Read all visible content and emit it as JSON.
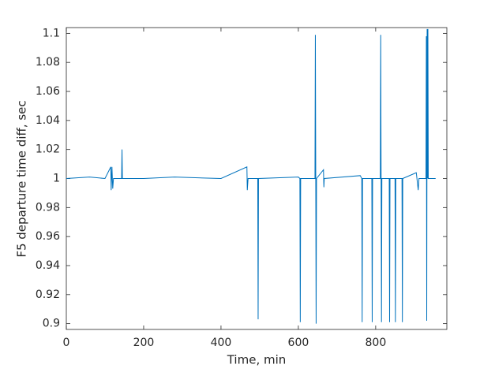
{
  "chart_data": {
    "type": "line",
    "x_label": "Time, min",
    "y_label": "F5 departure time diff, sec",
    "xlim": [
      0,
      984
    ],
    "ylim": [
      0.896,
      1.104
    ],
    "xticks": [
      0,
      200,
      400,
      600,
      800
    ],
    "yticks": [
      0.9,
      0.92,
      0.94,
      0.96,
      0.98,
      1,
      1.02,
      1.04,
      1.06,
      1.08,
      1.1
    ],
    "series": [
      {
        "color": "#0072bd",
        "x": [
          0,
          60,
          100,
          115,
          116,
          118,
          120,
          122,
          143,
          144,
          145,
          200,
          280,
          400,
          467,
          468,
          470,
          495,
          496,
          497,
          600,
          604,
          605,
          606,
          643,
          644,
          645,
          646,
          647,
          665,
          666,
          667,
          760,
          764,
          765,
          766,
          790,
          791,
          792,
          812,
          813,
          814,
          815,
          816,
          835,
          836,
          837,
          850,
          851,
          852,
          868,
          869,
          870,
          905,
          910,
          912,
          930,
          931,
          932,
          933,
          934,
          935,
          936,
          955
        ],
        "values": [
          1,
          1.001,
          1,
          1.008,
          0.992,
          1.008,
          0.993,
          1,
          1,
          1.02,
          1,
          1,
          1.001,
          1,
          1.008,
          0.992,
          1,
          1,
          0.903,
          1,
          1.001,
          1,
          0.901,
          1,
          1,
          1.099,
          1,
          0.9,
          1,
          1.006,
          0.994,
          1,
          1.002,
          1,
          0.901,
          1,
          1,
          0.901,
          1,
          1,
          1.099,
          1,
          0.901,
          1,
          1,
          0.901,
          1,
          1,
          0.901,
          1,
          1,
          0.901,
          1,
          1.004,
          0.992,
          1,
          1,
          1.098,
          0.902,
          1.103,
          1,
          1.103,
          1,
          1
        ]
      }
    ]
  }
}
